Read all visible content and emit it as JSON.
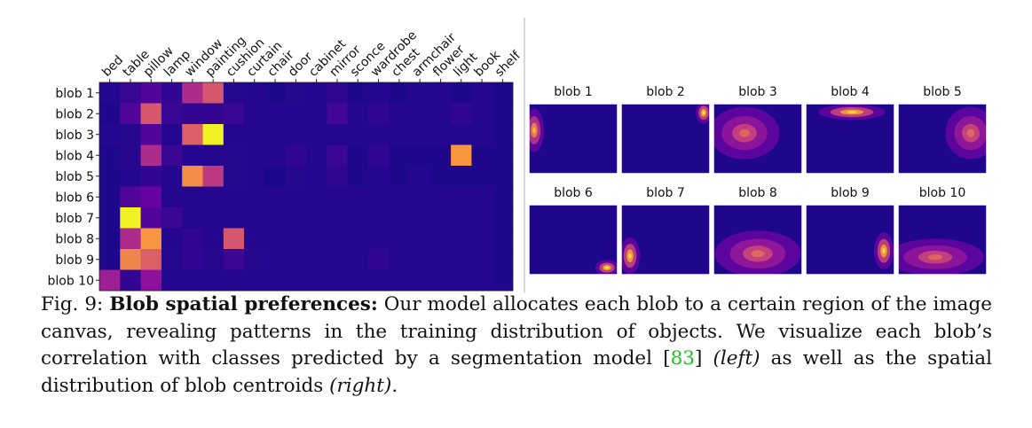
{
  "chart_data": [
    {
      "type": "heatmap",
      "colormap": "plasma",
      "x_labels": [
        "bed",
        "table",
        "pillow",
        "lamp",
        "window",
        "painting",
        "cushion",
        "curtain",
        "chair",
        "door",
        "cabinet",
        "mirror",
        "sconce",
        "wardrobe",
        "chest",
        "armchair",
        "flower",
        "light",
        "book",
        "shelf"
      ],
      "y_labels": [
        "blob 1",
        "blob 2",
        "blob 3",
        "blob 4",
        "blob 5",
        "blob 6",
        "blob 7",
        "blob 8",
        "blob 9",
        "blob 10"
      ],
      "values": [
        [
          0.05,
          0.1,
          0.15,
          0.08,
          0.4,
          0.55,
          0.06,
          0.05,
          0.04,
          0.06,
          0.05,
          0.07,
          0.04,
          0.05,
          0.04,
          0.05,
          0.05,
          0.04,
          0.05,
          0.04
        ],
        [
          0.04,
          0.15,
          0.55,
          0.1,
          0.08,
          0.08,
          0.1,
          0.05,
          0.05,
          0.05,
          0.05,
          0.12,
          0.05,
          0.08,
          0.05,
          0.05,
          0.05,
          0.08,
          0.05,
          0.04
        ],
        [
          0.05,
          0.06,
          0.15,
          0.05,
          0.58,
          0.98,
          0.05,
          0.05,
          0.05,
          0.05,
          0.05,
          0.05,
          0.05,
          0.05,
          0.05,
          0.05,
          0.05,
          0.05,
          0.05,
          0.04
        ],
        [
          0.04,
          0.06,
          0.4,
          0.1,
          0.05,
          0.05,
          0.06,
          0.05,
          0.05,
          0.08,
          0.05,
          0.1,
          0.04,
          0.08,
          0.04,
          0.04,
          0.04,
          0.75,
          0.04,
          0.04
        ],
        [
          0.04,
          0.05,
          0.08,
          0.05,
          0.72,
          0.45,
          0.06,
          0.05,
          0.03,
          0.06,
          0.05,
          0.07,
          0.04,
          0.05,
          0.04,
          0.05,
          0.04,
          0.04,
          0.04,
          0.04
        ],
        [
          0.04,
          0.15,
          0.2,
          0.05,
          0.05,
          0.05,
          0.05,
          0.05,
          0.05,
          0.05,
          0.05,
          0.05,
          0.05,
          0.05,
          0.05,
          0.05,
          0.05,
          0.05,
          0.05,
          0.04
        ],
        [
          0.04,
          0.98,
          0.15,
          0.1,
          0.05,
          0.05,
          0.05,
          0.05,
          0.05,
          0.05,
          0.05,
          0.05,
          0.05,
          0.05,
          0.05,
          0.05,
          0.05,
          0.05,
          0.05,
          0.04
        ],
        [
          0.04,
          0.4,
          0.75,
          0.05,
          0.08,
          0.05,
          0.55,
          0.05,
          0.05,
          0.05,
          0.05,
          0.05,
          0.05,
          0.05,
          0.05,
          0.05,
          0.05,
          0.05,
          0.05,
          0.04
        ],
        [
          0.04,
          0.7,
          0.58,
          0.06,
          0.08,
          0.06,
          0.1,
          0.06,
          0.05,
          0.05,
          0.05,
          0.05,
          0.05,
          0.08,
          0.05,
          0.05,
          0.05,
          0.05,
          0.05,
          0.04
        ],
        [
          0.35,
          0.08,
          0.3,
          0.05,
          0.05,
          0.05,
          0.05,
          0.05,
          0.05,
          0.05,
          0.05,
          0.05,
          0.05,
          0.05,
          0.05,
          0.05,
          0.05,
          0.05,
          0.05,
          0.04
        ]
      ]
    },
    {
      "type": "heatmap",
      "colormap": "plasma",
      "panels": [
        {
          "title": "blob 1",
          "cx": 0.06,
          "cy": 0.38,
          "sx": 0.05,
          "sy": 0.14,
          "peak": 0.85
        },
        {
          "title": "blob 2",
          "cx": 0.93,
          "cy": 0.13,
          "sx": 0.04,
          "sy": 0.07,
          "peak": 1.0
        },
        {
          "title": "blob 3",
          "cx": 0.35,
          "cy": 0.42,
          "sx": 0.18,
          "sy": 0.17,
          "peak": 0.6
        },
        {
          "title": "blob 4",
          "cx": 0.52,
          "cy": 0.12,
          "sx": 0.17,
          "sy": 0.05,
          "peak": 0.95
        },
        {
          "title": "blob 5",
          "cx": 0.82,
          "cy": 0.42,
          "sx": 0.13,
          "sy": 0.17,
          "peak": 0.62
        },
        {
          "title": "blob 6",
          "cx": 0.88,
          "cy": 0.9,
          "sx": 0.06,
          "sy": 0.05,
          "peak": 1.0
        },
        {
          "title": "blob 7",
          "cx": 0.1,
          "cy": 0.73,
          "sx": 0.05,
          "sy": 0.12,
          "peak": 0.95
        },
        {
          "title": "blob 8",
          "cx": 0.5,
          "cy": 0.7,
          "sx": 0.22,
          "sy": 0.15,
          "peak": 0.62
        },
        {
          "title": "blob 9",
          "cx": 0.88,
          "cy": 0.66,
          "sx": 0.05,
          "sy": 0.12,
          "peak": 0.95
        },
        {
          "title": "blob 10",
          "cx": 0.42,
          "cy": 0.75,
          "sx": 0.25,
          "sy": 0.12,
          "peak": 0.6
        }
      ]
    }
  ],
  "caption": {
    "label": "Fig. 9:",
    "title": "Blob spatial preferences:",
    "text1": " Our model allocates each blob to a certain region of the image canvas, revealing patterns in the training distribution of objects. We visualize each blob’s correlation with classes predicted by a segmentation model [",
    "ref": "83",
    "text2": "] ",
    "left": "(left)",
    "text3": " as well as the spatial distribution of blob centroids ",
    "right": "(right)",
    "text4": "."
  }
}
